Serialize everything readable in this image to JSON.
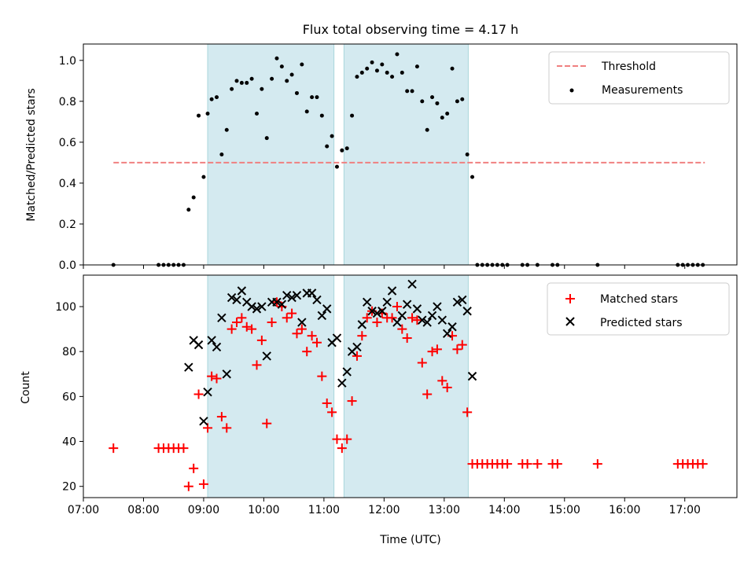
{
  "chart_data": [
    {
      "type": "scatter",
      "title": "Flux total observing time = 4.17 h",
      "xlabel": "",
      "ylabel": "Matched/Predicted stars",
      "xlim": [
        "07:00",
        "17:52"
      ],
      "ylim": [
        0,
        1.08
      ],
      "yticks": [
        "0.0",
        "0.2",
        "0.4",
        "0.6",
        "0.8",
        "1.0"
      ],
      "grid": false,
      "legend_position": "top-right",
      "shaded_intervals": [
        [
          "09:04",
          "11:10"
        ],
        [
          "11:20",
          "13:24"
        ]
      ],
      "shade_color": "#d4eaf0",
      "threshold": {
        "name": "Threshold",
        "value": 0.5,
        "x_range": [
          "07:30",
          "17:20"
        ],
        "color": "#f08080",
        "style": "dashed"
      },
      "series": [
        {
          "name": "Measurements",
          "color": "#000000",
          "marker": "dot",
          "points": [
            [
              "07:30",
              0
            ],
            [
              "08:15",
              0
            ],
            [
              "08:20",
              0
            ],
            [
              "08:25",
              0
            ],
            [
              "08:30",
              0
            ],
            [
              "08:35",
              0
            ],
            [
              "08:40",
              0
            ],
            [
              "08:45",
              0.27
            ],
            [
              "08:50",
              0.33
            ],
            [
              "08:55",
              0.73
            ],
            [
              "09:00",
              0.43
            ],
            [
              "09:04",
              0.74
            ],
            [
              "09:08",
              0.81
            ],
            [
              "09:13",
              0.82
            ],
            [
              "09:18",
              0.54
            ],
            [
              "09:23",
              0.66
            ],
            [
              "09:28",
              0.86
            ],
            [
              "09:33",
              0.9
            ],
            [
              "09:38",
              0.89
            ],
            [
              "09:43",
              0.89
            ],
            [
              "09:48",
              0.91
            ],
            [
              "09:53",
              0.74
            ],
            [
              "09:58",
              0.86
            ],
            [
              "10:03",
              0.62
            ],
            [
              "10:08",
              0.91
            ],
            [
              "10:13",
              1.01
            ],
            [
              "10:18",
              0.97
            ],
            [
              "10:23",
              0.9
            ],
            [
              "10:28",
              0.93
            ],
            [
              "10:33",
              0.84
            ],
            [
              "10:38",
              0.98
            ],
            [
              "10:43",
              0.75
            ],
            [
              "10:48",
              0.82
            ],
            [
              "10:53",
              0.82
            ],
            [
              "10:58",
              0.73
            ],
            [
              "11:03",
              0.58
            ],
            [
              "11:08",
              0.63
            ],
            [
              "11:13",
              0.48
            ],
            [
              "11:18",
              0.56
            ],
            [
              "11:23",
              0.57
            ],
            [
              "11:28",
              0.73
            ],
            [
              "11:33",
              0.92
            ],
            [
              "11:38",
              0.94
            ],
            [
              "11:43",
              0.96
            ],
            [
              "11:48",
              0.99
            ],
            [
              "11:53",
              0.95
            ],
            [
              "11:58",
              0.98
            ],
            [
              "12:03",
              0.94
            ],
            [
              "12:08",
              0.92
            ],
            [
              "12:13",
              1.03
            ],
            [
              "12:18",
              0.94
            ],
            [
              "12:23",
              0.85
            ],
            [
              "12:28",
              0.85
            ],
            [
              "12:33",
              0.97
            ],
            [
              "12:38",
              0.8
            ],
            [
              "12:43",
              0.66
            ],
            [
              "12:48",
              0.82
            ],
            [
              "12:53",
              0.79
            ],
            [
              "12:58",
              0.72
            ],
            [
              "13:03",
              0.74
            ],
            [
              "13:08",
              0.96
            ],
            [
              "13:13",
              0.8
            ],
            [
              "13:18",
              0.81
            ],
            [
              "13:23",
              0.54
            ],
            [
              "13:28",
              0.43
            ],
            [
              "13:33",
              0
            ],
            [
              "13:38",
              0
            ],
            [
              "13:43",
              0
            ],
            [
              "13:48",
              0
            ],
            [
              "13:53",
              0
            ],
            [
              "13:58",
              0
            ],
            [
              "14:03",
              0
            ],
            [
              "14:18",
              0
            ],
            [
              "14:23",
              0
            ],
            [
              "14:33",
              0
            ],
            [
              "14:48",
              0
            ],
            [
              "14:53",
              0
            ],
            [
              "15:33",
              0
            ],
            [
              "16:53",
              0
            ],
            [
              "16:58",
              0
            ],
            [
              "17:03",
              0
            ],
            [
              "17:08",
              0
            ],
            [
              "17:13",
              0
            ],
            [
              "17:18",
              0
            ]
          ]
        }
      ]
    },
    {
      "type": "scatter",
      "title": "",
      "xlabel": "Time (UTC)",
      "ylabel": "Count",
      "xlim": [
        "07:00",
        "17:52"
      ],
      "ylim": [
        15,
        114
      ],
      "xticks": [
        "07:00",
        "08:00",
        "09:00",
        "10:00",
        "11:00",
        "12:00",
        "13:00",
        "14:00",
        "15:00",
        "16:00",
        "17:00"
      ],
      "yticks": [
        "20",
        "40",
        "60",
        "80",
        "100"
      ],
      "grid": false,
      "legend_position": "top-right",
      "shaded_intervals": [
        [
          "09:04",
          "11:10"
        ],
        [
          "11:20",
          "13:24"
        ]
      ],
      "series": [
        {
          "name": "Matched stars",
          "color": "#ff0000",
          "marker": "plus",
          "points": [
            [
              "07:30",
              37
            ],
            [
              "08:15",
              37
            ],
            [
              "08:20",
              37
            ],
            [
              "08:25",
              37
            ],
            [
              "08:30",
              37
            ],
            [
              "08:35",
              37
            ],
            [
              "08:40",
              37
            ],
            [
              "08:45",
              20
            ],
            [
              "08:50",
              28
            ],
            [
              "08:55",
              61
            ],
            [
              "09:00",
              21
            ],
            [
              "09:04",
              46
            ],
            [
              "09:08",
              69
            ],
            [
              "09:13",
              68
            ],
            [
              "09:18",
              51
            ],
            [
              "09:23",
              46
            ],
            [
              "09:28",
              90
            ],
            [
              "09:33",
              93
            ],
            [
              "09:38",
              95
            ],
            [
              "09:43",
              91
            ],
            [
              "09:48",
              90
            ],
            [
              "09:53",
              74
            ],
            [
              "09:58",
              85
            ],
            [
              "10:03",
              48
            ],
            [
              "10:08",
              93
            ],
            [
              "10:13",
              102
            ],
            [
              "10:18",
              100
            ],
            [
              "10:23",
              95
            ],
            [
              "10:28",
              97
            ],
            [
              "10:33",
              88
            ],
            [
              "10:38",
              90
            ],
            [
              "10:43",
              80
            ],
            [
              "10:48",
              87
            ],
            [
              "10:53",
              84
            ],
            [
              "10:58",
              69
            ],
            [
              "11:03",
              57
            ],
            [
              "11:08",
              53
            ],
            [
              "11:13",
              41
            ],
            [
              "11:18",
              37
            ],
            [
              "11:23",
              41
            ],
            [
              "11:28",
              58
            ],
            [
              "11:33",
              78
            ],
            [
              "11:38",
              87
            ],
            [
              "11:43",
              95
            ],
            [
              "11:48",
              98
            ],
            [
              "11:53",
              93
            ],
            [
              "11:58",
              97
            ],
            [
              "12:03",
              95
            ],
            [
              "12:08",
              95
            ],
            [
              "12:13",
              100
            ],
            [
              "12:18",
              90
            ],
            [
              "12:23",
              86
            ],
            [
              "12:28",
              95
            ],
            [
              "12:33",
              94
            ],
            [
              "12:38",
              75
            ],
            [
              "12:43",
              61
            ],
            [
              "12:48",
              80
            ],
            [
              "12:53",
              81
            ],
            [
              "12:58",
              67
            ],
            [
              "13:03",
              64
            ],
            [
              "13:08",
              87
            ],
            [
              "13:13",
              81
            ],
            [
              "13:18",
              83
            ],
            [
              "13:23",
              53
            ],
            [
              "13:28",
              30
            ],
            [
              "13:33",
              30
            ],
            [
              "13:38",
              30
            ],
            [
              "13:43",
              30
            ],
            [
              "13:48",
              30
            ],
            [
              "13:53",
              30
            ],
            [
              "13:58",
              30
            ],
            [
              "14:03",
              30
            ],
            [
              "14:18",
              30
            ],
            [
              "14:23",
              30
            ],
            [
              "14:33",
              30
            ],
            [
              "14:48",
              30
            ],
            [
              "14:53",
              30
            ],
            [
              "15:33",
              30
            ],
            [
              "16:53",
              30
            ],
            [
              "16:58",
              30
            ],
            [
              "17:03",
              30
            ],
            [
              "17:08",
              30
            ],
            [
              "17:13",
              30
            ],
            [
              "17:18",
              30
            ]
          ]
        },
        {
          "name": "Predicted stars",
          "color": "#000000",
          "marker": "x",
          "points": [
            [
              "08:45",
              73
            ],
            [
              "08:50",
              85
            ],
            [
              "08:55",
              83
            ],
            [
              "09:00",
              49
            ],
            [
              "09:04",
              62
            ],
            [
              "09:08",
              85
            ],
            [
              "09:13",
              82
            ],
            [
              "09:18",
              95
            ],
            [
              "09:23",
              70
            ],
            [
              "09:28",
              104
            ],
            [
              "09:33",
              103
            ],
            [
              "09:38",
              107
            ],
            [
              "09:43",
              102
            ],
            [
              "09:48",
              100
            ],
            [
              "09:53",
              99
            ],
            [
              "09:58",
              100
            ],
            [
              "10:03",
              78
            ],
            [
              "10:08",
              102
            ],
            [
              "10:13",
              102
            ],
            [
              "10:18",
              101
            ],
            [
              "10:23",
              105
            ],
            [
              "10:28",
              104
            ],
            [
              "10:33",
              105
            ],
            [
              "10:38",
              93
            ],
            [
              "10:43",
              106
            ],
            [
              "10:48",
              106
            ],
            [
              "10:53",
              103
            ],
            [
              "10:58",
              96
            ],
            [
              "11:03",
              99
            ],
            [
              "11:08",
              84
            ],
            [
              "11:13",
              86
            ],
            [
              "11:18",
              66
            ],
            [
              "11:23",
              71
            ],
            [
              "11:28",
              80
            ],
            [
              "11:33",
              82
            ],
            [
              "11:38",
              92
            ],
            [
              "11:43",
              102
            ],
            [
              "11:48",
              98
            ],
            [
              "11:53",
              97
            ],
            [
              "11:58",
              98
            ],
            [
              "12:03",
              102
            ],
            [
              "12:08",
              107
            ],
            [
              "12:13",
              93
            ],
            [
              "12:18",
              96
            ],
            [
              "12:23",
              101
            ],
            [
              "12:28",
              110
            ],
            [
              "12:33",
              99
            ],
            [
              "12:38",
              94
            ],
            [
              "12:43",
              93
            ],
            [
              "12:48",
              96
            ],
            [
              "12:53",
              100
            ],
            [
              "12:58",
              94
            ],
            [
              "13:03",
              88
            ],
            [
              "13:08",
              91
            ],
            [
              "13:13",
              102
            ],
            [
              "13:18",
              103
            ],
            [
              "13:23",
              98
            ],
            [
              "13:28",
              69
            ]
          ]
        }
      ]
    }
  ]
}
